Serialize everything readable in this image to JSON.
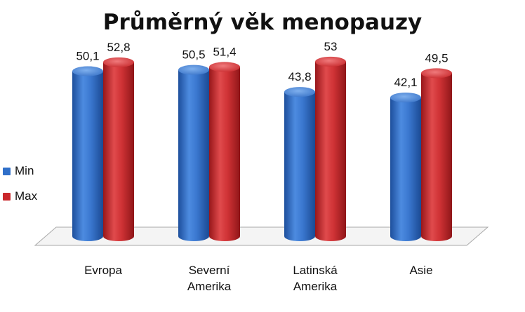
{
  "chart_data": {
    "type": "bar",
    "title": "Průměrný věk menopauzy",
    "categories": [
      [
        "Evropa"
      ],
      [
        "Severní",
        "Amerika"
      ],
      [
        "Latinská",
        "Amerika"
      ],
      [
        "Asie"
      ]
    ],
    "series": [
      {
        "name": "Min",
        "values": [
          50.1,
          50.5,
          43.8,
          42.1
        ],
        "labels": [
          "50,1",
          "50,5",
          "43,8",
          "42,1"
        ],
        "color": "#2f6fc9"
      },
      {
        "name": "Max",
        "values": [
          52.8,
          51.4,
          53,
          49.5
        ],
        "labels": [
          "52,8",
          "51,4",
          "53",
          "49,5"
        ],
        "color": "#c9272b"
      }
    ],
    "ylim": [
      0,
      60
    ],
    "grid": false,
    "legend_position": "left"
  }
}
